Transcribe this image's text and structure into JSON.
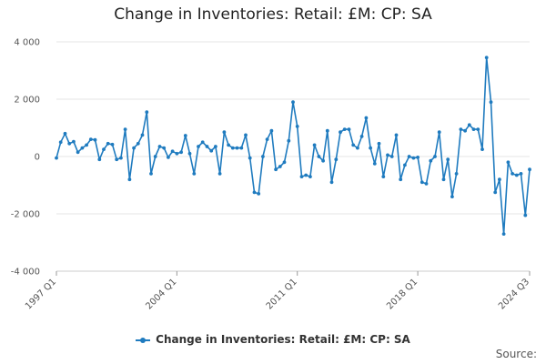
{
  "chart_data": {
    "type": "line",
    "title": "Change in Inventories: Retail: £M: CP: SA",
    "xlabel": "",
    "ylabel": "",
    "ylim": [
      -4000,
      4000
    ],
    "yticks": [
      4000,
      2000,
      0,
      -2000,
      -4000
    ],
    "ytick_labels": [
      "4 000",
      "2 000",
      "0",
      "-2 000",
      "-4 000"
    ],
    "xtick_labels": [
      "1997 Q1",
      "2004 Q1",
      "2011 Q1",
      "2018 Q1",
      "2024 Q3"
    ],
    "xtick_indices": [
      0,
      28,
      56,
      84,
      110
    ],
    "grid": "horizontal",
    "legend_position": "bottom",
    "color": "#1f7bbf",
    "series": [
      {
        "name": "Change in Inventories: Retail: £M: CP: SA",
        "values": [
          -50,
          500,
          800,
          450,
          520,
          150,
          300,
          400,
          600,
          580,
          -100,
          250,
          450,
          420,
          -100,
          -50,
          950,
          -800,
          300,
          450,
          750,
          1550,
          -600,
          0,
          350,
          300,
          -30,
          180,
          100,
          150,
          730,
          100,
          -600,
          350,
          500,
          350,
          200,
          350,
          -600,
          850,
          400,
          300,
          300,
          300,
          750,
          -50,
          -1250,
          -1300,
          0,
          600,
          900,
          -450,
          -350,
          -200,
          550,
          1900,
          1050,
          -700,
          -650,
          -700,
          400,
          0,
          -150,
          900,
          -900,
          -100,
          850,
          950,
          950,
          400,
          300,
          700,
          1350,
          300,
          -250,
          450,
          -700,
          50,
          0,
          750,
          -800,
          -300,
          0,
          -50,
          -30,
          -900,
          -950,
          -150,
          0,
          850,
          -800,
          -100,
          -1400,
          -600,
          950,
          900,
          1100,
          950,
          950,
          250,
          3450,
          1900,
          -1250,
          -800,
          -2700,
          -200,
          -600,
          -650,
          -600,
          -2050,
          -450
        ]
      }
    ]
  },
  "legend": {
    "label": "Change in Inventories: Retail: £M: CP: SA"
  },
  "footer": {
    "source": "Source:"
  }
}
